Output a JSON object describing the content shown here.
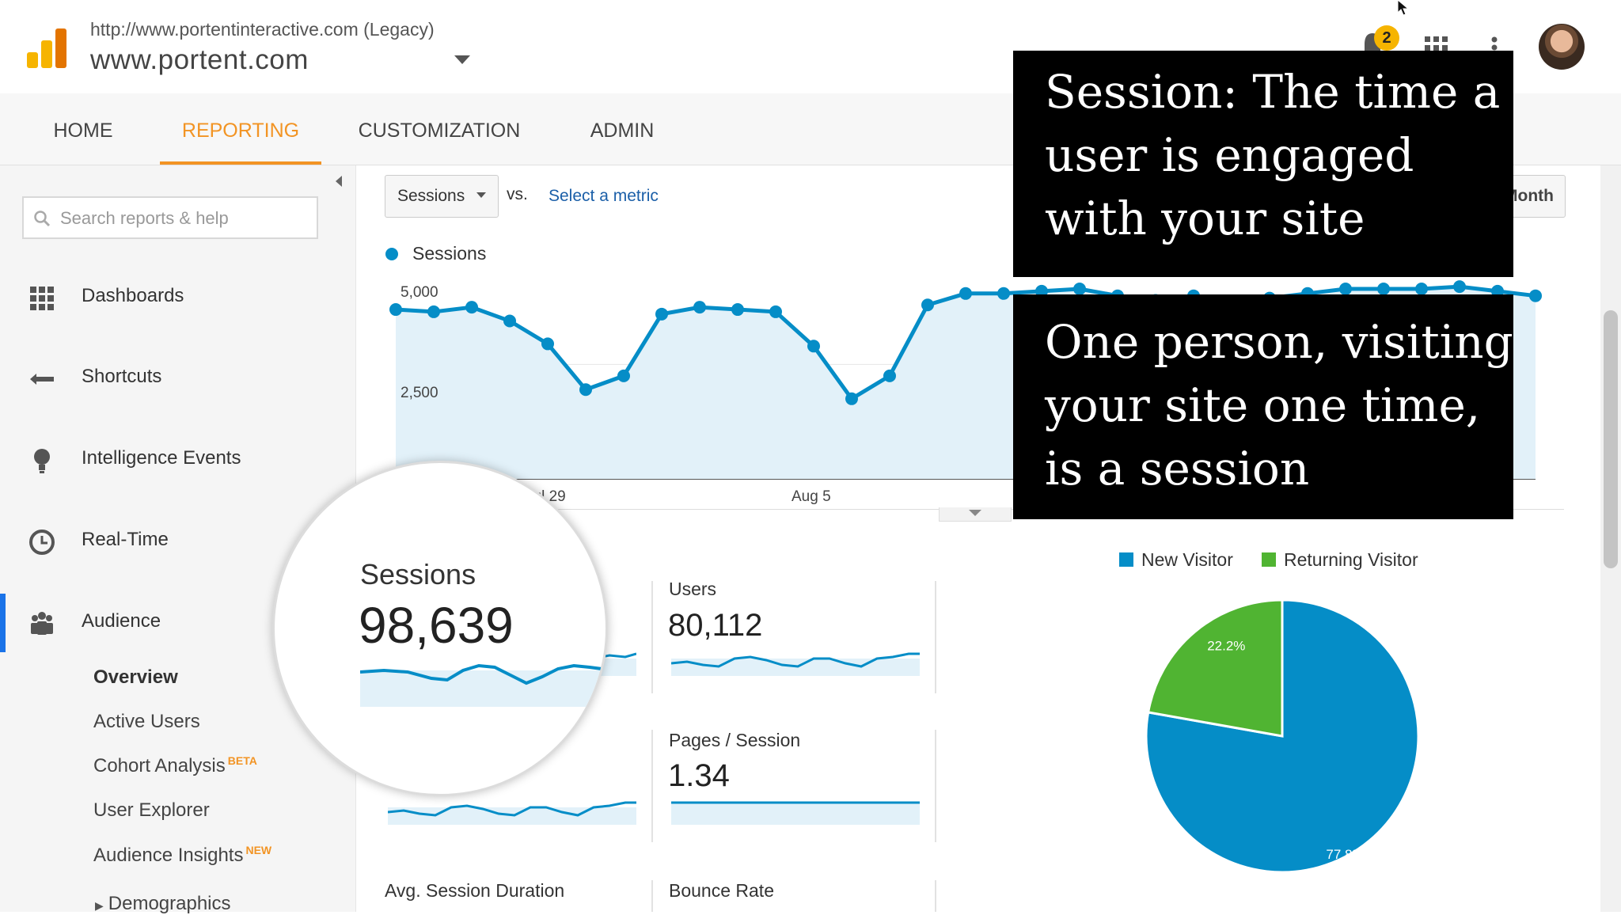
{
  "header": {
    "property_url": "http://www.portentinteractive.com (Legacy)",
    "property_name": "www.portent.com",
    "notification_count": "2",
    "logo_icon": "analytics-bars-icon",
    "apps_icon": "grid-apps-icon",
    "more_icon": "vertical-dots-icon"
  },
  "nav": {
    "tabs": [
      {
        "label": "HOME"
      },
      {
        "label": "REPORTING"
      },
      {
        "label": "CUSTOMIZATION"
      },
      {
        "label": "ADMIN"
      }
    ],
    "active_tab": "REPORTING",
    "accent": "#f29424"
  },
  "sidebar": {
    "search_placeholder": "Search reports & help",
    "items": [
      {
        "label": "Dashboards",
        "icon": "dashboard-grid-icon"
      },
      {
        "label": "Shortcuts",
        "icon": "shortcut-arrow-icon"
      },
      {
        "label": "Intelligence Events",
        "icon": "lightbulb-icon"
      },
      {
        "label": "Real-Time",
        "icon": "clock-icon"
      },
      {
        "label": "Audience",
        "icon": "people-icon"
      }
    ],
    "audience_sub": [
      {
        "label": "Overview"
      },
      {
        "label": "Active Users"
      },
      {
        "label": "Cohort Analysis",
        "badge": "BETA"
      },
      {
        "label": "User Explorer"
      },
      {
        "label": "Audience Insights",
        "badge": "NEW"
      },
      {
        "label": "Demographics"
      }
    ]
  },
  "toolbar": {
    "metric": "Sessions",
    "vs": "vs.",
    "select_metric": "Select a metric",
    "period_button": "Month"
  },
  "chart_data": {
    "type": "line",
    "series": [
      {
        "name": "Sessions",
        "color": "#058dc7",
        "values": [
          3700,
          3650,
          3750,
          3450,
          2950,
          1950,
          2250,
          3600,
          3750,
          3700,
          3650,
          2900,
          1750,
          2250,
          3800,
          4050,
          4050,
          4100,
          4150,
          4000,
          3900,
          4000,
          3800,
          3950,
          4050,
          4150,
          4150,
          4150,
          4200,
          4100,
          4000
        ]
      }
    ],
    "y_ticks": [
      "5,000",
      "2,500"
    ],
    "ylim": [
      0,
      5000
    ],
    "x_ticks": [
      "Jul 29",
      "Aug 5"
    ],
    "legend": "top-left",
    "grid": true
  },
  "metrics": [
    {
      "label": "Sessions",
      "value": "98,639"
    },
    {
      "label": "Users",
      "value": "80,112"
    },
    {
      "label": "Pages / Session",
      "value": "1.34"
    },
    {
      "label": "Avg. Session Duration"
    },
    {
      "label": "Bounce Rate"
    }
  ],
  "pie": {
    "type": "pie",
    "legend": [
      "New Visitor",
      "Returning Visitor"
    ],
    "slices": [
      {
        "name": "New Visitor",
        "value": 77.8,
        "label": "77.8%",
        "color": "#058dc7"
      },
      {
        "name": "Returning Visitor",
        "value": 22.2,
        "label": "22.2%",
        "color": "#50b432"
      }
    ]
  },
  "overlays": {
    "caption_1": [
      "Session: The time a",
      "user is engaged",
      "with your site"
    ],
    "caption_2": [
      "One person, visiting",
      "your site one time,",
      "is a session"
    ]
  }
}
